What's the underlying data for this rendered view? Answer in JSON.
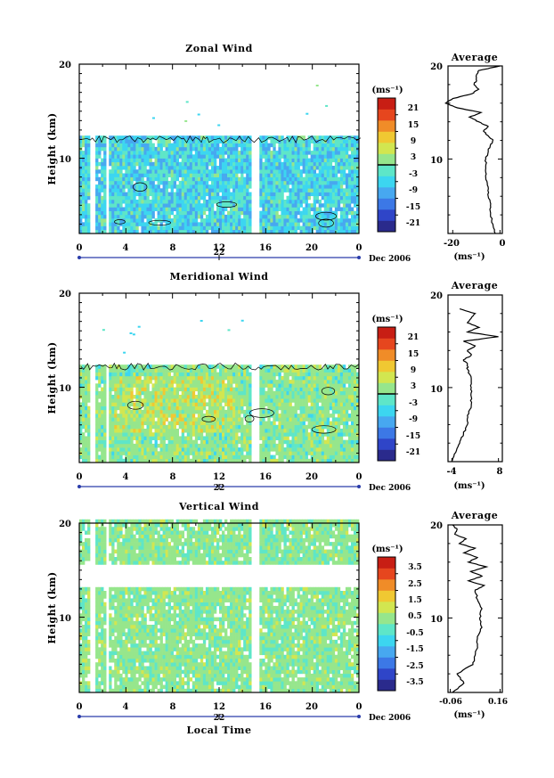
{
  "colormap": [
    "#2a2a8c",
    "#2f45c8",
    "#3c78e6",
    "#47a8f0",
    "#3cd6f0",
    "#5ee6c8",
    "#96e68c",
    "#d2e650",
    "#f0c832",
    "#f08c28",
    "#e6461e",
    "#c81e14"
  ],
  "chart_data": [
    {
      "type": "heatmap",
      "title": "Zonal Wind",
      "xlabel": "",
      "ylabel": "Height (km)",
      "x_ticks": [
        "0",
        "4",
        "8",
        "12",
        "16",
        "20",
        "0"
      ],
      "y_ticks": [
        "20",
        "10"
      ],
      "ylim": [
        2,
        20
      ],
      "day_label": "22",
      "month_label": "Dec 2006",
      "colorbar": {
        "unit_label": "(ms⁻¹)",
        "ticks": [
          "21",
          "15",
          "9",
          "3",
          "-3",
          "-9",
          "-15",
          "-21"
        ],
        "range": [
          -24,
          24
        ],
        "zero_line": 0
      },
      "data_top_km": 12.2,
      "base_value": -6,
      "palette_weights": {
        "-12": 1,
        "-9": 3,
        "-6": 5,
        "-3": 5,
        "0": 1
      },
      "profile": {
        "title": "Average",
        "xlabel": "(ms⁻¹)",
        "x_ticks": [
          "-20",
          "0"
        ],
        "y_ticks": [
          "20",
          "10"
        ],
        "xlim": [
          -22,
          1
        ],
        "ylim": [
          2,
          20
        ],
        "height_km": [
          2,
          3,
          4,
          5,
          6,
          7,
          8,
          9,
          10,
          11,
          11.5,
          12,
          12.5,
          13,
          13.5,
          14,
          14.5,
          15,
          15.5,
          16,
          16.5,
          17,
          17.5,
          18,
          18.5,
          19,
          19.5,
          20
        ],
        "value_ms": [
          -2,
          -3,
          -4,
          -4,
          -5,
          -5,
          -6,
          -6,
          -6,
          -5,
          -4,
          -3,
          -5,
          -7,
          -5,
          -9,
          -13,
          -8,
          -18,
          -23,
          -20,
          -12,
          -9,
          -11,
          -10,
          -10,
          -9,
          0
        ]
      }
    },
    {
      "type": "heatmap",
      "title": "Meridional Wind",
      "xlabel": "",
      "ylabel": "Height (km)",
      "x_ticks": [
        "0",
        "4",
        "8",
        "12",
        "16",
        "20",
        "0"
      ],
      "y_ticks": [
        "20",
        "10"
      ],
      "ylim": [
        2,
        20
      ],
      "day_label": "22",
      "month_label": "Dec 2006",
      "colorbar": {
        "unit_label": "(ms⁻¹)",
        "ticks": [
          "21",
          "15",
          "9",
          "3",
          "-3",
          "-9",
          "-15",
          "-21"
        ],
        "range": [
          -24,
          24
        ],
        "zero_line": 0
      },
      "data_top_km": 12.4,
      "base_value": 0,
      "palette_weights": {
        "-6": 1,
        "-3": 4,
        "0": 5,
        "3": 5,
        "6": 2
      },
      "profile": {
        "title": "Average",
        "xlabel": "(ms⁻¹)",
        "x_ticks": [
          "-4",
          "8"
        ],
        "y_ticks": [
          "20",
          "10"
        ],
        "xlim": [
          -5,
          9
        ],
        "ylim": [
          2,
          20
        ],
        "height_km": [
          2,
          3,
          4,
          5,
          6,
          7,
          8,
          9,
          10,
          11,
          12,
          12.5,
          13,
          13.5,
          14,
          14.5,
          15,
          15.5,
          16,
          16.5,
          17,
          17.5,
          18,
          18.5
        ],
        "value_ms": [
          -4,
          -3,
          -2,
          -1,
          0,
          0,
          1,
          1,
          1,
          1,
          0,
          0,
          -1,
          1,
          0,
          2,
          -1,
          8,
          0,
          3,
          0,
          1,
          2,
          -2
        ]
      }
    },
    {
      "type": "heatmap",
      "title": "Vertical Wind",
      "xlabel": "Local Time",
      "ylabel": "Height (km)",
      "x_ticks": [
        "0",
        "4",
        "8",
        "12",
        "16",
        "20",
        "0"
      ],
      "y_ticks": [
        "20",
        "10"
      ],
      "ylim": [
        2,
        20
      ],
      "day_label": "22",
      "month_label": "Dec 2006",
      "colorbar": {
        "unit_label": "(ms⁻¹)",
        "ticks": [
          "3.5",
          "2.5",
          "1.5",
          "0.5",
          "-0.5",
          "-1.5",
          "-2.5",
          "-3.5"
        ],
        "range": [
          -4,
          4
        ],
        "zero_line": null
      },
      "data_top_km": 20,
      "base_value": 0,
      "palette_weights": {
        "-0.5": 3,
        "0": 2,
        "0.5": 5,
        "1": 1
      },
      "profile": {
        "title": "Average",
        "xlabel": "(ms⁻¹)",
        "x_ticks": [
          "-0.06",
          "0.16"
        ],
        "y_ticks": [
          "20",
          "10"
        ],
        "xlim": [
          -0.07,
          0.17
        ],
        "ylim": [
          2,
          20
        ],
        "height_km": [
          2,
          3,
          4,
          5,
          6,
          7,
          8,
          9,
          10,
          11,
          12,
          13,
          13.5,
          14,
          14.5,
          15,
          15.5,
          16,
          16.5,
          17,
          17.5,
          18,
          18.5,
          19,
          19.5,
          20
        ],
        "value_ms": [
          -0.05,
          0.0,
          -0.03,
          0.04,
          0.05,
          0.06,
          0.06,
          0.08,
          0.07,
          0.08,
          0.06,
          0.05,
          0.09,
          0.02,
          0.08,
          0.03,
          0.1,
          0.02,
          0.06,
          0.0,
          0.05,
          -0.02,
          0.01,
          -0.04,
          -0.03,
          -0.05
        ]
      }
    }
  ]
}
